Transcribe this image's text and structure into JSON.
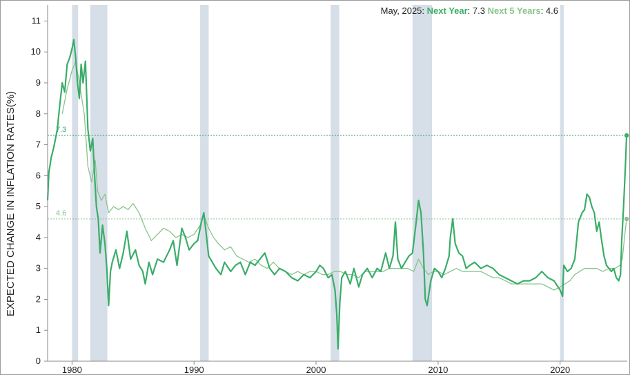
{
  "chart_data": {
    "type": "line",
    "title": "",
    "xlabel": "",
    "ylabel": "EXPECTED CHANGE IN INFLATION RATES(%)",
    "xlim": [
      1978.0,
      2025.5
    ],
    "ylim": [
      0,
      11.3
    ],
    "x_ticks": [
      "1980",
      "1990",
      "2000",
      "2010",
      "2020"
    ],
    "y_ticks": [
      "0",
      "1",
      "2",
      "3",
      "4",
      "5",
      "6",
      "7",
      "8",
      "9",
      "10",
      "11"
    ],
    "grid": false,
    "legend": {
      "placement": "top-right",
      "date_label": "May, 2025:",
      "items": [
        {
          "name": "Next Year",
          "sep": ":",
          "value": "7.3"
        },
        {
          "name": "Next 5 Years",
          "sep": ":",
          "value": "4.6"
        }
      ]
    },
    "reference_lines": [
      {
        "label": "7.3",
        "value": 7.3,
        "color": "#3aad69"
      },
      {
        "label": "4.6",
        "value": 4.6,
        "color": "#86c48b"
      }
    ],
    "recessions": [
      [
        1980.0,
        1980.5
      ],
      [
        1981.5,
        1982.9
      ],
      [
        1990.5,
        1991.2
      ],
      [
        2001.2,
        2001.9
      ],
      [
        2007.9,
        2009.5
      ],
      [
        2020.0,
        2020.3
      ]
    ],
    "series": [
      {
        "name": "Next Year",
        "color": "#3aad69",
        "points": [
          [
            1978.0,
            5.2
          ],
          [
            1978.1,
            6.1
          ],
          [
            1978.3,
            6.6
          ],
          [
            1978.5,
            6.9
          ],
          [
            1978.8,
            7.5
          ],
          [
            1979.0,
            8.3
          ],
          [
            1979.2,
            9.0
          ],
          [
            1979.4,
            8.7
          ],
          [
            1979.6,
            9.6
          ],
          [
            1979.8,
            9.8
          ],
          [
            1980.0,
            10.1
          ],
          [
            1980.15,
            10.4
          ],
          [
            1980.3,
            9.8
          ],
          [
            1980.45,
            9.0
          ],
          [
            1980.6,
            8.5
          ],
          [
            1980.75,
            9.6
          ],
          [
            1980.9,
            9.0
          ],
          [
            1981.1,
            9.7
          ],
          [
            1981.3,
            7.5
          ],
          [
            1981.5,
            6.8
          ],
          [
            1981.7,
            7.2
          ],
          [
            1981.85,
            6.0
          ],
          [
            1982.0,
            5.0
          ],
          [
            1982.15,
            4.6
          ],
          [
            1982.3,
            3.5
          ],
          [
            1982.5,
            4.4
          ],
          [
            1982.7,
            3.8
          ],
          [
            1982.85,
            3.0
          ],
          [
            1983.0,
            1.8
          ],
          [
            1983.15,
            2.9
          ],
          [
            1983.3,
            3.2
          ],
          [
            1983.6,
            3.6
          ],
          [
            1983.9,
            3.0
          ],
          [
            1984.2,
            3.5
          ],
          [
            1984.5,
            4.2
          ],
          [
            1984.8,
            3.3
          ],
          [
            1985.2,
            3.6
          ],
          [
            1985.5,
            3.1
          ],
          [
            1985.8,
            2.9
          ],
          [
            1986.0,
            2.5
          ],
          [
            1986.3,
            3.2
          ],
          [
            1986.6,
            2.8
          ],
          [
            1987.0,
            3.3
          ],
          [
            1987.5,
            3.2
          ],
          [
            1988.0,
            3.6
          ],
          [
            1988.3,
            3.9
          ],
          [
            1988.6,
            3.1
          ],
          [
            1989.0,
            4.3
          ],
          [
            1989.3,
            4.0
          ],
          [
            1989.6,
            3.6
          ],
          [
            1990.0,
            3.8
          ],
          [
            1990.3,
            3.9
          ],
          [
            1990.6,
            4.5
          ],
          [
            1990.8,
            4.8
          ],
          [
            1991.0,
            4.1
          ],
          [
            1991.2,
            3.4
          ],
          [
            1991.5,
            3.2
          ],
          [
            1991.8,
            3.0
          ],
          [
            1992.2,
            2.8
          ],
          [
            1992.5,
            3.2
          ],
          [
            1993.0,
            2.9
          ],
          [
            1993.4,
            3.1
          ],
          [
            1993.8,
            3.2
          ],
          [
            1994.2,
            2.8
          ],
          [
            1994.6,
            3.2
          ],
          [
            1995.0,
            3.1
          ],
          [
            1995.4,
            3.3
          ],
          [
            1995.8,
            3.5
          ],
          [
            1996.2,
            3.0
          ],
          [
            1996.6,
            2.8
          ],
          [
            1997.0,
            3.0
          ],
          [
            1997.5,
            2.9
          ],
          [
            1998.0,
            2.7
          ],
          [
            1998.5,
            2.6
          ],
          [
            1999.0,
            2.8
          ],
          [
            1999.5,
            2.7
          ],
          [
            2000.0,
            2.9
          ],
          [
            2000.3,
            3.1
          ],
          [
            2000.6,
            3.0
          ],
          [
            2001.0,
            2.7
          ],
          [
            2001.3,
            2.8
          ],
          [
            2001.55,
            2.3
          ],
          [
            2001.7,
            1.5
          ],
          [
            2001.8,
            0.4
          ],
          [
            2001.95,
            1.9
          ],
          [
            2002.1,
            2.7
          ],
          [
            2002.4,
            2.9
          ],
          [
            2002.8,
            2.5
          ],
          [
            2003.1,
            3.0
          ],
          [
            2003.5,
            2.4
          ],
          [
            2003.8,
            2.8
          ],
          [
            2004.2,
            3.0
          ],
          [
            2004.6,
            2.7
          ],
          [
            2005.0,
            3.0
          ],
          [
            2005.3,
            2.9
          ],
          [
            2005.7,
            3.5
          ],
          [
            2006.0,
            3.0
          ],
          [
            2006.3,
            3.4
          ],
          [
            2006.5,
            4.5
          ],
          [
            2006.7,
            3.3
          ],
          [
            2007.0,
            3.0
          ],
          [
            2007.3,
            3.2
          ],
          [
            2007.6,
            3.4
          ],
          [
            2007.9,
            3.5
          ],
          [
            2008.2,
            4.5
          ],
          [
            2008.4,
            5.2
          ],
          [
            2008.6,
            4.8
          ],
          [
            2008.8,
            3.5
          ],
          [
            2008.95,
            2.0
          ],
          [
            2009.1,
            1.8
          ],
          [
            2009.4,
            2.6
          ],
          [
            2009.7,
            3.0
          ],
          [
            2010.0,
            2.9
          ],
          [
            2010.3,
            2.7
          ],
          [
            2010.6,
            3.0
          ],
          [
            2010.9,
            3.4
          ],
          [
            2011.0,
            4.0
          ],
          [
            2011.2,
            4.6
          ],
          [
            2011.4,
            3.8
          ],
          [
            2011.7,
            3.5
          ],
          [
            2012.0,
            3.4
          ],
          [
            2012.3,
            3.0
          ],
          [
            2012.6,
            3.1
          ],
          [
            2013.0,
            3.2
          ],
          [
            2013.5,
            3.0
          ],
          [
            2014.0,
            3.1
          ],
          [
            2014.5,
            3.0
          ],
          [
            2015.0,
            2.8
          ],
          [
            2015.5,
            2.7
          ],
          [
            2016.0,
            2.6
          ],
          [
            2016.5,
            2.5
          ],
          [
            2017.0,
            2.6
          ],
          [
            2017.5,
            2.6
          ],
          [
            2018.0,
            2.7
          ],
          [
            2018.5,
            2.9
          ],
          [
            2019.0,
            2.7
          ],
          [
            2019.5,
            2.6
          ],
          [
            2020.0,
            2.3
          ],
          [
            2020.2,
            2.1
          ],
          [
            2020.3,
            3.1
          ],
          [
            2020.6,
            2.9
          ],
          [
            2020.9,
            3.0
          ],
          [
            2021.2,
            3.3
          ],
          [
            2021.5,
            4.5
          ],
          [
            2021.8,
            4.8
          ],
          [
            2022.0,
            4.9
          ],
          [
            2022.2,
            5.4
          ],
          [
            2022.4,
            5.3
          ],
          [
            2022.6,
            5.0
          ],
          [
            2022.8,
            4.8
          ],
          [
            2023.0,
            4.2
          ],
          [
            2023.2,
            4.5
          ],
          [
            2023.4,
            3.9
          ],
          [
            2023.6,
            3.4
          ],
          [
            2023.8,
            3.1
          ],
          [
            2024.0,
            3.0
          ],
          [
            2024.2,
            2.9
          ],
          [
            2024.4,
            3.0
          ],
          [
            2024.6,
            2.7
          ],
          [
            2024.8,
            2.6
          ],
          [
            2024.95,
            2.8
          ],
          [
            2025.05,
            3.9
          ],
          [
            2025.2,
            5.0
          ],
          [
            2025.35,
            6.3
          ],
          [
            2025.45,
            7.3
          ]
        ]
      },
      {
        "name": "Next 5 Years",
        "color": "#86c48b",
        "points": [
          [
            1979.2,
            8.0
          ],
          [
            1979.6,
            8.8
          ],
          [
            1980.0,
            9.4
          ],
          [
            1980.3,
            9.7
          ],
          [
            1980.6,
            9.0
          ],
          [
            1981.0,
            8.0
          ],
          [
            1981.3,
            6.3
          ],
          [
            1981.6,
            5.8
          ],
          [
            1981.9,
            6.5
          ],
          [
            1982.1,
            5.5
          ],
          [
            1982.4,
            5.2
          ],
          [
            1982.7,
            5.4
          ],
          [
            1983.0,
            4.8
          ],
          [
            1983.4,
            5.0
          ],
          [
            1983.8,
            4.9
          ],
          [
            1984.2,
            5.0
          ],
          [
            1984.6,
            4.9
          ],
          [
            1985.0,
            5.1
          ],
          [
            1985.5,
            4.8
          ],
          [
            1986.0,
            4.3
          ],
          [
            1986.5,
            3.9
          ],
          [
            1987.0,
            4.1
          ],
          [
            1987.5,
            4.3
          ],
          [
            1988.0,
            4.2
          ],
          [
            1988.5,
            4.0
          ],
          [
            1989.0,
            4.1
          ],
          [
            1989.5,
            4.0
          ],
          [
            1990.0,
            4.1
          ],
          [
            1990.5,
            4.4
          ],
          [
            1990.8,
            4.7
          ],
          [
            1991.2,
            4.3
          ],
          [
            1991.6,
            4.0
          ],
          [
            1992.0,
            3.8
          ],
          [
            1992.5,
            3.6
          ],
          [
            1993.0,
            3.7
          ],
          [
            1993.5,
            3.4
          ],
          [
            1994.0,
            3.3
          ],
          [
            1994.5,
            3.2
          ],
          [
            1995.0,
            3.3
          ],
          [
            1995.5,
            3.1
          ],
          [
            1996.0,
            3.0
          ],
          [
            1996.5,
            3.2
          ],
          [
            1997.0,
            3.0
          ],
          [
            1997.5,
            2.9
          ],
          [
            1998.0,
            2.8
          ],
          [
            1998.5,
            2.9
          ],
          [
            1999.0,
            2.8
          ],
          [
            1999.5,
            2.9
          ],
          [
            2000.0,
            2.9
          ],
          [
            2000.5,
            2.8
          ],
          [
            2001.0,
            2.8
          ],
          [
            2001.5,
            2.9
          ],
          [
            2002.0,
            2.9
          ],
          [
            2002.5,
            2.8
          ],
          [
            2003.0,
            2.8
          ],
          [
            2003.5,
            2.7
          ],
          [
            2004.0,
            2.9
          ],
          [
            2004.5,
            2.9
          ],
          [
            2005.0,
            2.9
          ],
          [
            2005.5,
            2.9
          ],
          [
            2006.0,
            3.0
          ],
          [
            2006.5,
            3.0
          ],
          [
            2007.0,
            3.0
          ],
          [
            2007.5,
            3.0
          ],
          [
            2008.0,
            2.9
          ],
          [
            2008.4,
            3.3
          ],
          [
            2008.8,
            3.0
          ],
          [
            2009.2,
            2.8
          ],
          [
            2009.6,
            2.9
          ],
          [
            2010.0,
            2.9
          ],
          [
            2010.5,
            2.8
          ],
          [
            2011.0,
            2.9
          ],
          [
            2011.5,
            3.0
          ],
          [
            2012.0,
            2.9
          ],
          [
            2012.5,
            2.9
          ],
          [
            2013.0,
            2.9
          ],
          [
            2013.5,
            2.9
          ],
          [
            2014.0,
            2.8
          ],
          [
            2014.5,
            2.7
          ],
          [
            2015.0,
            2.7
          ],
          [
            2015.5,
            2.6
          ],
          [
            2016.0,
            2.5
          ],
          [
            2016.5,
            2.5
          ],
          [
            2017.0,
            2.5
          ],
          [
            2017.5,
            2.5
          ],
          [
            2018.0,
            2.5
          ],
          [
            2018.5,
            2.5
          ],
          [
            2019.0,
            2.4
          ],
          [
            2019.5,
            2.3
          ],
          [
            2020.0,
            2.4
          ],
          [
            2020.4,
            2.5
          ],
          [
            2020.8,
            2.6
          ],
          [
            2021.2,
            2.8
          ],
          [
            2021.6,
            2.9
          ],
          [
            2022.0,
            3.0
          ],
          [
            2022.5,
            3.0
          ],
          [
            2023.0,
            3.0
          ],
          [
            2023.5,
            2.9
          ],
          [
            2024.0,
            3.0
          ],
          [
            2024.5,
            3.0
          ],
          [
            2024.9,
            3.1
          ],
          [
            2025.1,
            3.3
          ],
          [
            2025.3,
            4.1
          ],
          [
            2025.45,
            4.6
          ]
        ]
      }
    ]
  }
}
